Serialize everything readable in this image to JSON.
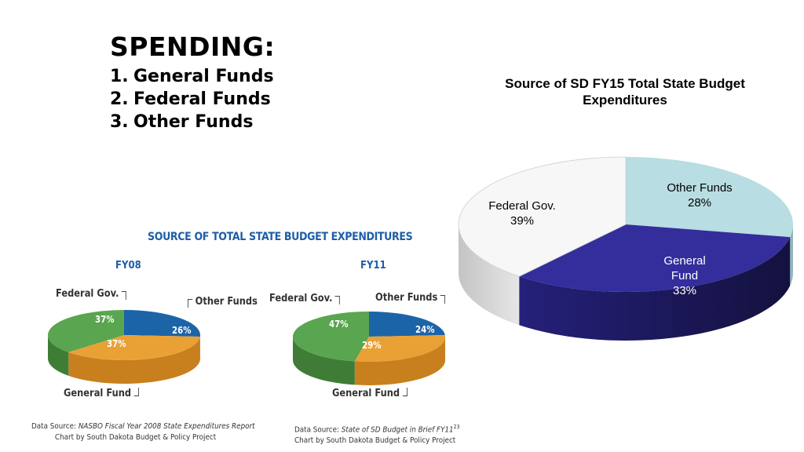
{
  "slide": {
    "heading": "SPENDING:",
    "items": [
      {
        "num": "1.",
        "label": "General Funds"
      },
      {
        "num": "2.",
        "label": "Federal Funds"
      },
      {
        "num": "3.",
        "label": "Other Funds"
      }
    ]
  },
  "fy15": {
    "title_line1": "Source of SD FY15 Total State Budget",
    "title_line2": "Expenditures",
    "labels": {
      "other_name": "Other Funds",
      "other_pct": "28%",
      "federal_name": "Federal Gov.",
      "federal_pct": "39%",
      "general_line1": "General",
      "general_line2": "Fund",
      "general_pct": "33%"
    }
  },
  "inset": {
    "title": "SOURCE OF TOTAL STATE BUDGET EXPENDITURES",
    "fy08": {
      "label": "FY08",
      "federal": "Federal Gov.",
      "other": "Other Funds",
      "general": "General Fund",
      "federal_pct": "37%",
      "other_pct": "26%",
      "general_pct": "37%",
      "source_prefix": "Data Source:",
      "source_title": "NASBO Fiscal Year 2008 State Expenditures Report",
      "credit": "Chart by South Dakota Budget & Policy Project"
    },
    "fy11": {
      "label": "FY11",
      "federal": "Federal Gov.",
      "other": "Other Funds",
      "general": "General Fund",
      "federal_pct": "47%",
      "other_pct": "24%",
      "general_pct": "29%",
      "source_prefix": "Data Source:",
      "source_title": "State of SD Budget in Brief FY11",
      "source_sup": "23",
      "credit": "Chart by South Dakota Budget & Policy Project"
    }
  },
  "colors": {
    "other_fy15": "#b8dde2",
    "federal_fy15": "#f7f7f7",
    "general_fy15": "#332e9c",
    "inset_federal": "#5aa54f",
    "inset_other": "#1c64a8",
    "inset_general": "#e9a136",
    "inset_title": "#1d5ea8"
  },
  "chart_data": [
    {
      "type": "pie",
      "title": "Source of SD FY15 Total State Budget Expenditures",
      "categories": [
        "Other Funds",
        "General Fund",
        "Federal Gov."
      ],
      "values": [
        28,
        33,
        39
      ]
    },
    {
      "type": "pie",
      "title": "FY08",
      "categories": [
        "Other Funds",
        "General Fund",
        "Federal Gov."
      ],
      "values": [
        26,
        37,
        37
      ]
    },
    {
      "type": "pie",
      "title": "FY11",
      "categories": [
        "Other Funds",
        "General Fund",
        "Federal Gov."
      ],
      "values": [
        24,
        29,
        47
      ]
    }
  ]
}
